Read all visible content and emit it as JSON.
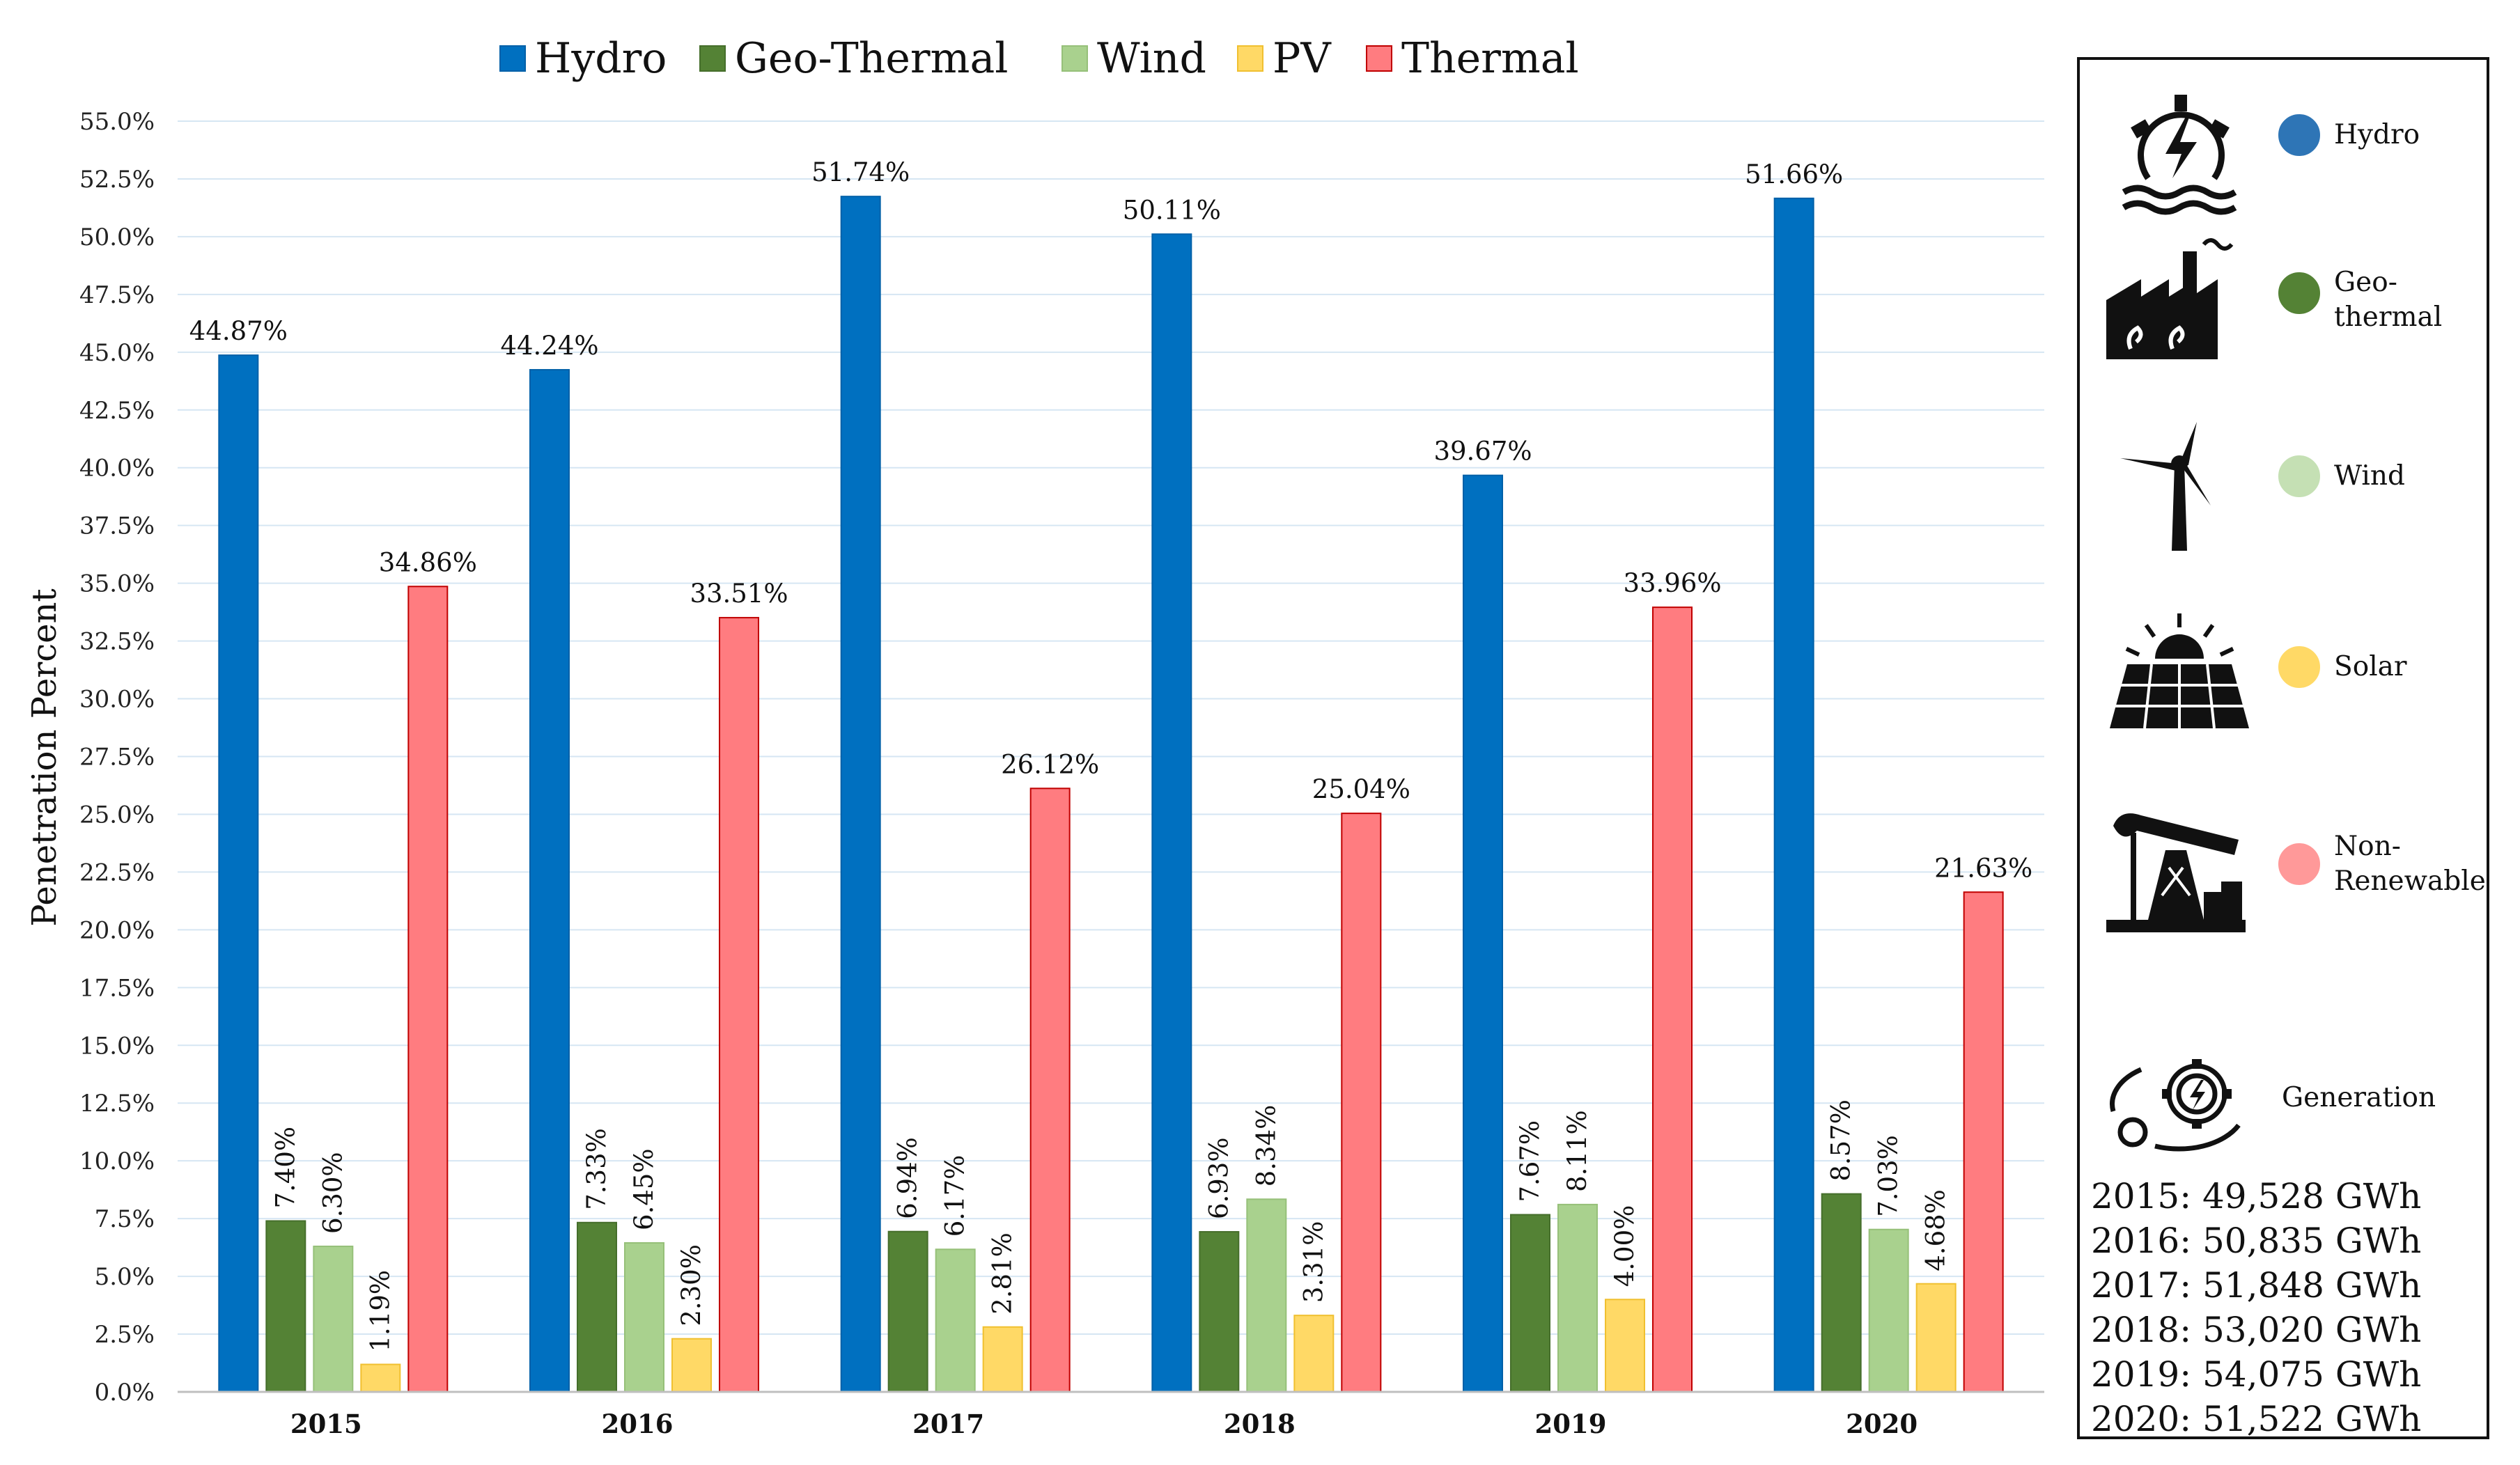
{
  "chart_data": {
    "type": "bar",
    "title": "",
    "xlabel": "",
    "ylabel": "Penetration Percent",
    "ylim": [
      0,
      55
    ],
    "ytick_step": 2.5,
    "ytick_labels": [
      "0.0%",
      "2.5%",
      "5.0%",
      "7.5%",
      "10.0%",
      "12.5%",
      "15.0%",
      "17.5%",
      "20.0%",
      "22.5%",
      "25.0%",
      "27.5%",
      "30.0%",
      "32.5%",
      "35.0%",
      "37.5%",
      "40.0%",
      "42.5%",
      "45.0%",
      "47.5%",
      "50.0%",
      "52.5%",
      "55.0%"
    ],
    "grid": true,
    "legend_position": "top",
    "categories": [
      "2015",
      "2016",
      "2017",
      "2018",
      "2019",
      "2020"
    ],
    "series": [
      {
        "name": "Hydro",
        "color": "#0070c0",
        "edge": "#0060a8",
        "values": [
          44.87,
          44.24,
          51.74,
          50.11,
          39.67,
          51.66
        ],
        "labels": [
          "44.87%",
          "44.24%",
          "51.74%",
          "50.11%",
          "39.67%",
          "51.66%"
        ],
        "label_style": "horizontal"
      },
      {
        "name": "Geo-Thermal",
        "color": "#548235",
        "edge": "#456e2b",
        "values": [
          7.4,
          7.33,
          6.94,
          6.93,
          7.67,
          8.57
        ],
        "labels": [
          "7.40%",
          "7.33%",
          "6.94%",
          "6.93%",
          "7.67%",
          "8.57%"
        ],
        "label_style": "vertical"
      },
      {
        "name": "Wind",
        "color": "#a9d18e",
        "edge": "#96c079",
        "values": [
          6.3,
          6.45,
          6.17,
          8.34,
          8.11,
          7.03
        ],
        "labels": [
          "6.30%",
          "6.45%",
          "6.17%",
          "8.34%",
          "8.11%",
          "7.03%"
        ],
        "label_style": "vertical"
      },
      {
        "name": "PV",
        "color": "#ffd966",
        "edge": "#f0c030",
        "values": [
          1.19,
          2.3,
          2.81,
          3.31,
          4.0,
          4.68
        ],
        "labels": [
          "1.19%",
          "2.30%",
          "2.81%",
          "3.31%",
          "4.00%",
          "4.68%"
        ],
        "label_style": "vertical"
      },
      {
        "name": "Thermal",
        "color": "#ff7c80",
        "edge": "#c00000",
        "values": [
          34.86,
          33.51,
          26.12,
          25.04,
          33.96,
          21.63
        ],
        "labels": [
          "34.86%",
          "33.51%",
          "26.12%",
          "25.04%",
          "33.96%",
          "21.63%"
        ],
        "label_style": "horizontal"
      }
    ]
  },
  "side_legend": {
    "items": [
      {
        "icon": "hydro-power-icon",
        "label": "Hydro",
        "color": "#2e75b6"
      },
      {
        "icon": "geothermal-plant-icon",
        "label": "Geo-\nthermal",
        "color": "#548235"
      },
      {
        "icon": "wind-turbine-icon",
        "label": "Wind",
        "color": "#c5e0b4"
      },
      {
        "icon": "solar-panel-icon",
        "label": "Solar",
        "color": "#ffd966"
      },
      {
        "icon": "oil-pump-icon",
        "label": "Non-\nRenewable",
        "color": "#ff9999"
      }
    ],
    "generation": {
      "icon": "generation-gears-icon",
      "label": "Generation",
      "entries": [
        "2015: 49,528 GWh",
        "2016: 50,835 GWh",
        "2017: 51,848 GWh",
        "2018: 53,020 GWh",
        "2019: 54,075 GWh",
        "2020: 51,522 GWh"
      ]
    }
  }
}
